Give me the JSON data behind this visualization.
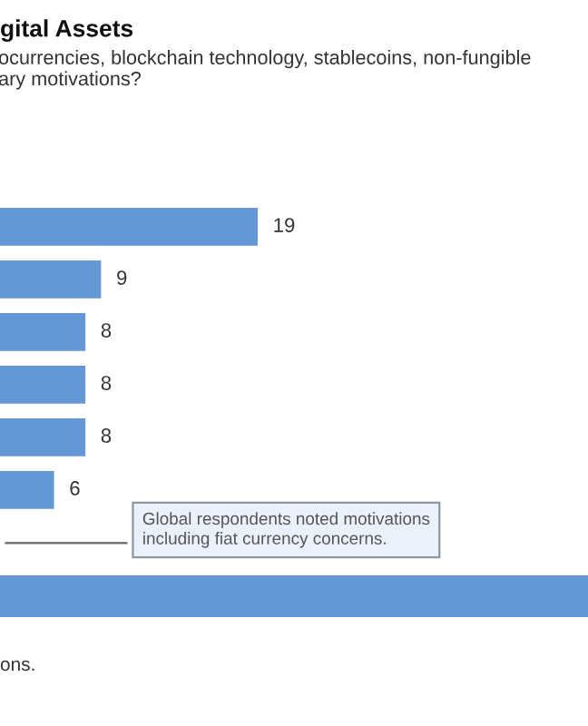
{
  "chart_data": {
    "type": "bar",
    "orientation": "horizontal",
    "title": "gital Assets",
    "subtitle": "ocurrencies, blockchain technology, stablecoins, non-fungible\nary motivations?",
    "categories": [
      null,
      null,
      null,
      null,
      null,
      null
    ],
    "values": [
      19,
      9,
      8,
      8,
      8,
      6
    ],
    "color": "#6497d6",
    "data_labels": true,
    "annotations": [
      "Global respondents noted motivations\nincluding fiat currency concerns.",
      "ons."
    ]
  }
}
